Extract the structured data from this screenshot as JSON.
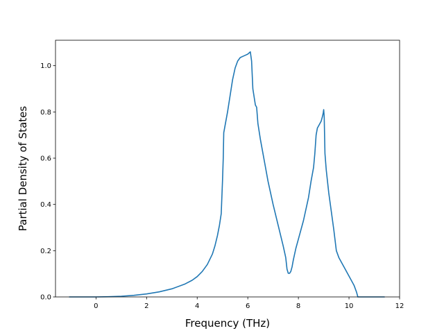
{
  "chart_data": {
    "type": "line",
    "title": "",
    "xlabel": "Frequency (THz)",
    "ylabel": "Partial Density of States",
    "xlim": [
      -1.6,
      12.0
    ],
    "ylim": [
      0.0,
      1.11
    ],
    "x_ticks": [
      0,
      2,
      4,
      6,
      8,
      10,
      12
    ],
    "y_ticks": [
      0.0,
      0.2,
      0.4,
      0.6,
      0.8,
      1.0
    ],
    "x_tick_labels": [
      "0",
      "2",
      "4",
      "6",
      "8",
      "10",
      "12"
    ],
    "y_tick_labels": [
      "0.0",
      "0.2",
      "0.4",
      "0.6",
      "0.8",
      "1.0"
    ],
    "grid": false,
    "legend": "none",
    "series": [
      {
        "color": "#1f77b4",
        "x": [
          -1.05,
          0.0,
          0.5,
          1.0,
          1.5,
          2.0,
          2.5,
          3.0,
          3.5,
          3.8,
          4.0,
          4.2,
          4.4,
          4.6,
          4.7,
          4.8,
          4.88,
          4.95,
          5.0,
          5.03,
          5.05,
          5.1,
          5.2,
          5.3,
          5.4,
          5.5,
          5.6,
          5.7,
          5.8,
          5.9,
          6.0,
          6.05,
          6.1,
          6.15,
          6.2,
          6.3,
          6.35,
          6.4,
          6.5,
          6.6,
          6.8,
          7.0,
          7.2,
          7.4,
          7.5,
          7.55,
          7.6,
          7.65,
          7.7,
          7.75,
          7.8,
          7.9,
          8.0,
          8.2,
          8.4,
          8.5,
          8.6,
          8.65,
          8.7,
          8.75,
          8.8,
          8.9,
          8.95,
          8.98,
          9.0,
          9.02,
          9.05,
          9.1,
          9.2,
          9.3,
          9.4,
          9.5,
          9.6,
          9.8,
          10.0,
          10.2,
          10.3,
          10.35,
          10.4,
          10.6,
          11.4
        ],
        "y": [
          0.0,
          0.0,
          0.001,
          0.003,
          0.007,
          0.013,
          0.022,
          0.035,
          0.055,
          0.072,
          0.088,
          0.11,
          0.14,
          0.185,
          0.22,
          0.265,
          0.31,
          0.36,
          0.5,
          0.6,
          0.71,
          0.74,
          0.8,
          0.87,
          0.94,
          0.99,
          1.02,
          1.035,
          1.04,
          1.045,
          1.05,
          1.055,
          1.06,
          1.02,
          0.9,
          0.83,
          0.82,
          0.75,
          0.68,
          0.62,
          0.5,
          0.4,
          0.31,
          0.22,
          0.17,
          0.12,
          0.102,
          0.102,
          0.11,
          0.13,
          0.16,
          0.21,
          0.25,
          0.33,
          0.43,
          0.5,
          0.56,
          0.62,
          0.7,
          0.73,
          0.74,
          0.76,
          0.78,
          0.795,
          0.81,
          0.78,
          0.62,
          0.55,
          0.45,
          0.37,
          0.29,
          0.2,
          0.17,
          0.13,
          0.09,
          0.05,
          0.02,
          0.0,
          0.0,
          0.0,
          0.0
        ]
      }
    ]
  }
}
